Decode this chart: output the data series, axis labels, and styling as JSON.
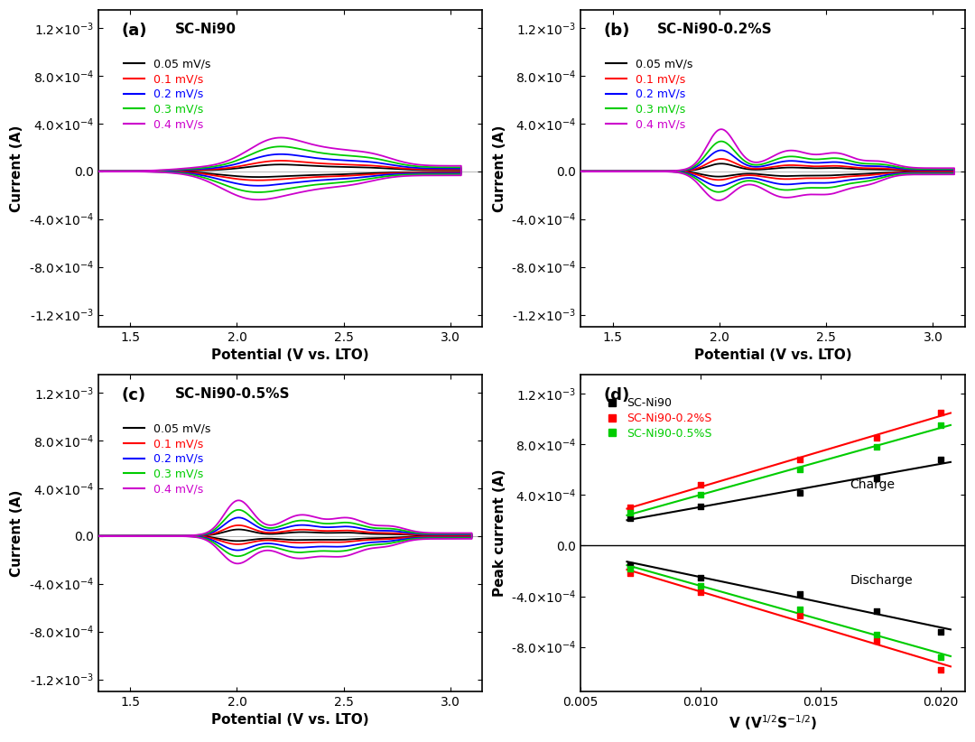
{
  "panel_labels": [
    "(a)",
    "(b)",
    "(c)",
    "(d)"
  ],
  "panel_titles": [
    "SC-Ni90",
    "SC-Ni90-0.2%S",
    "SC-Ni90-0.5%S",
    ""
  ],
  "scan_rates": [
    0.05,
    0.1,
    0.2,
    0.3,
    0.4
  ],
  "scan_rate_labels": [
    "0.05 mV/s",
    "0.1 mV/s",
    "0.2 mV/s",
    "0.3 mV/s",
    "0.4 mV/s"
  ],
  "line_colors": [
    "#000000",
    "#ff0000",
    "#0000ff",
    "#00cc00",
    "#cc00cc"
  ],
  "xlabel_cv": "Potential (V vs. LTO)",
  "ylabel_cv": "Current (A)",
  "xlim_cv": [
    1.35,
    3.15
  ],
  "ylim_cv": [
    -0.0013,
    0.00135
  ],
  "ylabel_d": "Peak current (A)",
  "d_legend": [
    "SC-Ni90",
    "SC-Ni90-0.2%S",
    "SC-Ni90-0.5%S"
  ],
  "d_colors": [
    "#000000",
    "#ff0000",
    "#00cc00"
  ],
  "v_sqrt": [
    0.00707,
    0.01,
    0.01414,
    0.01732,
    0.02
  ],
  "charge_peaks_Ni90": [
    0.00022,
    0.00031,
    0.00042,
    0.00053,
    0.00068
  ],
  "charge_peaks_Ni90_02S": [
    0.0003,
    0.00048,
    0.00068,
    0.00085,
    0.00105
  ],
  "charge_peaks_Ni90_05S": [
    0.00026,
    0.0004,
    0.0006,
    0.00078,
    0.00095
  ],
  "discharge_peaks_Ni90": [
    -0.00015,
    -0.00025,
    -0.00038,
    -0.00052,
    -0.00068
  ],
  "discharge_peaks_Ni90_02S": [
    -0.00022,
    -0.00037,
    -0.00055,
    -0.00075,
    -0.00098
  ],
  "discharge_peaks_Ni90_05S": [
    -0.00018,
    -0.00032,
    -0.0005,
    -0.0007,
    -0.00088
  ]
}
